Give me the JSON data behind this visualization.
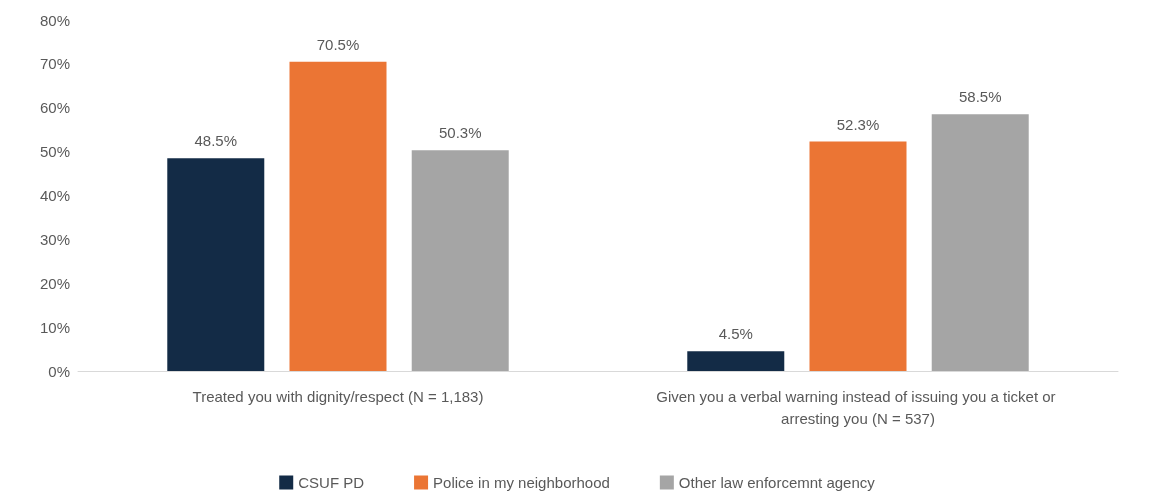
{
  "chart_data": {
    "type": "bar",
    "categories": [
      "Treated you with dignity/respect (N = 1,183)",
      "Given you a verbal warning instead of issuing you a ticket or arresting you (N = 537)"
    ],
    "series": [
      {
        "name": "CSUF PD",
        "color": "#132b46",
        "values": [
          48.5,
          4.5
        ],
        "value_labels": [
          "48.5%",
          "4.5%"
        ]
      },
      {
        "name": "Police in my neighborhood",
        "color": "#eb7534",
        "values": [
          70.5,
          52.3
        ],
        "value_labels": [
          "70.5%",
          "52.3%"
        ]
      },
      {
        "name": "Other law enforcemnt agency",
        "color": "#a5a5a5",
        "values": [
          50.3,
          58.5
        ],
        "value_labels": [
          "50.3%",
          "58.5%"
        ]
      }
    ],
    "ylim": [
      0,
      80
    ],
    "yticks": [
      {
        "value": 0,
        "label": "0%"
      },
      {
        "value": 10,
        "label": "10%"
      },
      {
        "value": 20,
        "label": "20%"
      },
      {
        "value": 30,
        "label": "30%"
      },
      {
        "value": 40,
        "label": "40%"
      },
      {
        "value": 50,
        "label": "50%"
      },
      {
        "value": 60,
        "label": "60%"
      },
      {
        "value": 70,
        "label": "70%"
      },
      {
        "value": 80,
        "label": "80%"
      }
    ],
    "grid": false,
    "legend": "bottom"
  }
}
